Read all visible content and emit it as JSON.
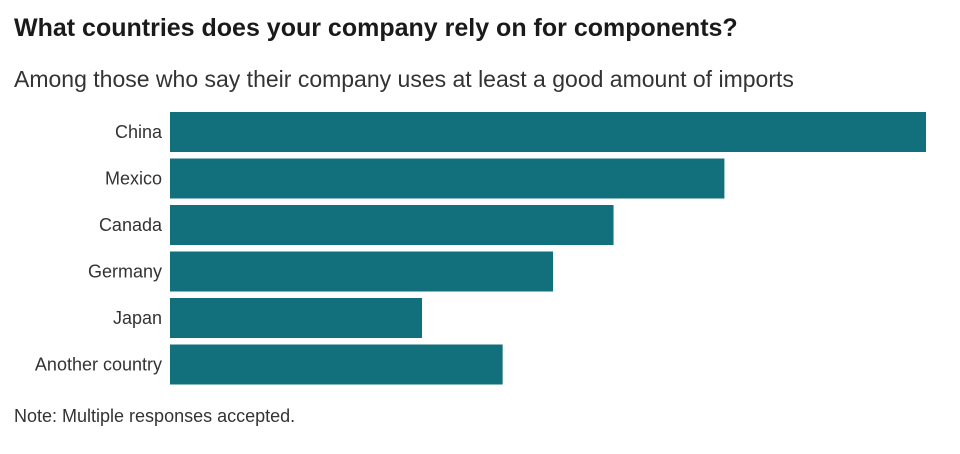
{
  "title": "What countries does your company rely on for components?",
  "subtitle": "Among those who say their company uses at least a good amount of imports",
  "note": "Note: Multiple responses accepted.",
  "colors": {
    "bar": "#12707c"
  },
  "chart_data": {
    "type": "bar",
    "orientation": "horizontal",
    "title": "What countries does your company rely on for components?",
    "subtitle": "Among those who say their company uses at least a good amount of imports",
    "xlabel": "",
    "ylabel": "",
    "categories": [
      "China",
      "Mexico",
      "Canada",
      "Germany",
      "Japan",
      "Another country"
    ],
    "values": [
      75,
      55,
      44,
      38,
      25,
      33
    ],
    "xlim": [
      0,
      75
    ],
    "grid": false,
    "legend": "none"
  }
}
